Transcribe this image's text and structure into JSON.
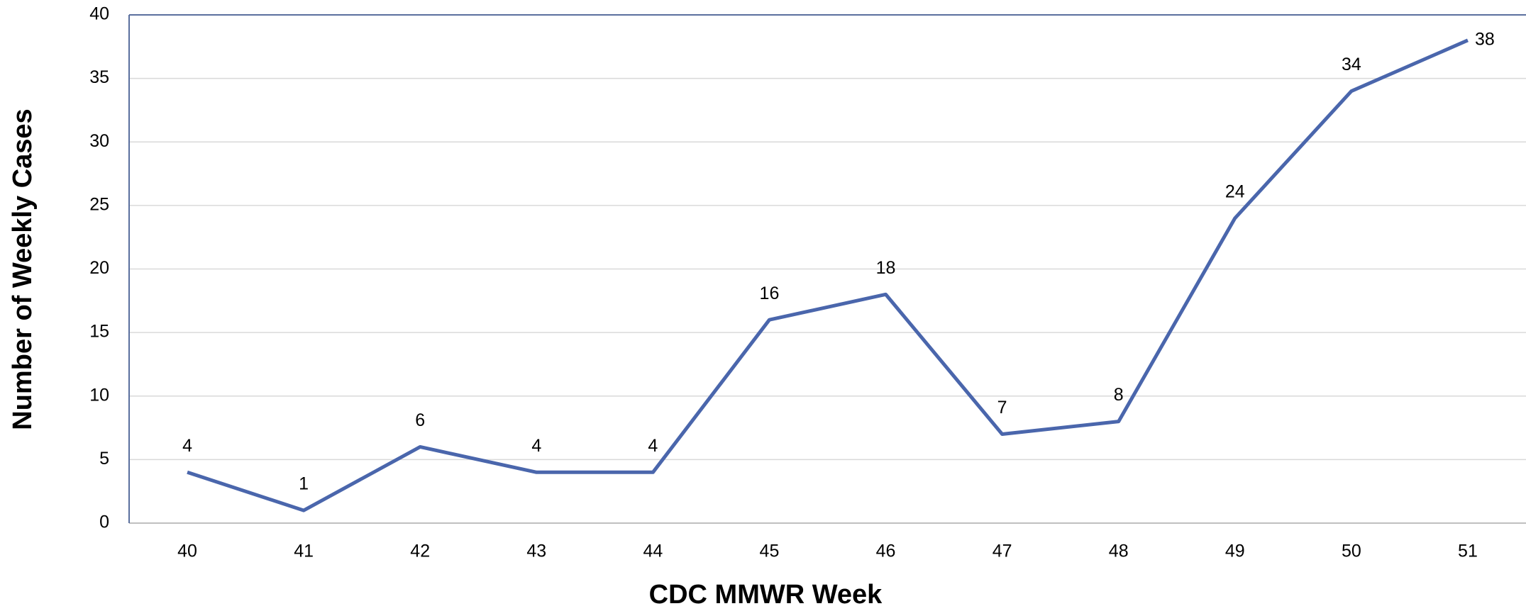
{
  "chart_data": {
    "type": "line",
    "x_label": "CDC MMWR Week",
    "y_label": "Number of Weekly Cases",
    "categories": [
      "40",
      "41",
      "42",
      "43",
      "44",
      "45",
      "46",
      "47",
      "48",
      "49",
      "50",
      "51"
    ],
    "series": [
      {
        "color": "#4a66ac",
        "values": [
          4,
          1,
          6,
          4,
          4,
          16,
          18,
          7,
          8,
          24,
          34,
          38
        ]
      }
    ],
    "ylim": [
      0,
      40
    ],
    "yticks": [
      0,
      5,
      10,
      15,
      20,
      25,
      30,
      35,
      40
    ],
    "grid": true
  }
}
